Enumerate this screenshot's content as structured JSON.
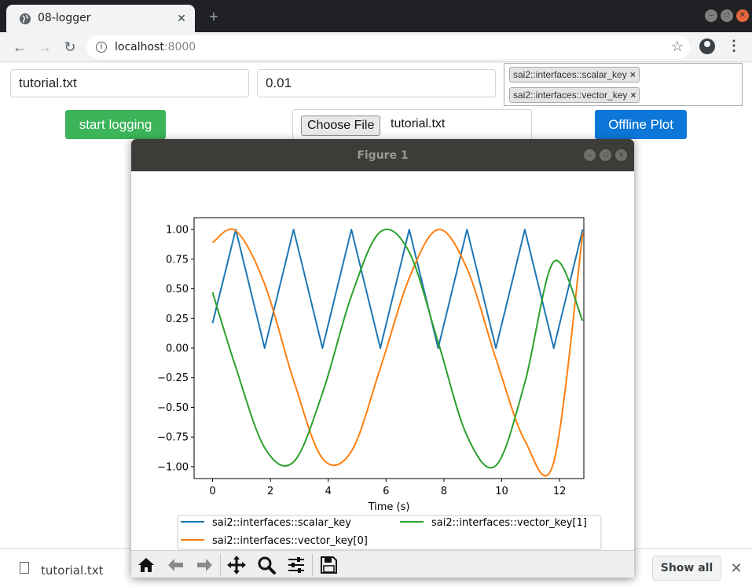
{
  "browser": {
    "tab_title": "08-logger",
    "url_host": "localhost",
    "url_port": ":8000"
  },
  "form": {
    "filename_value": "tutorial.txt",
    "interval_value": "0.01",
    "selected_keys": [
      "sai2::interfaces::scalar_key",
      "sai2::interfaces::vector_key"
    ],
    "start_logging_label": "start logging",
    "choose_file_label": "Choose File",
    "chosen_file": "tutorial.txt",
    "offline_plot_label": "Offline Plot"
  },
  "figure": {
    "window_title": "Figure 1"
  },
  "downloads": {
    "file": "tutorial.txt",
    "show_all_label": "Show all"
  },
  "icons": {
    "tab": "globe-icon",
    "file": "file-icon",
    "toolbar": [
      "home-icon",
      "back-icon",
      "forward-icon",
      "pan-icon",
      "zoom-icon",
      "configure-icon",
      "save-icon"
    ]
  },
  "colors": {
    "start_logging": "#3cb55a",
    "offline_plot": "#0d77d9",
    "series": [
      "#1f77b4",
      "#ff7f0e",
      "#2ca02c"
    ]
  },
  "chart_data": {
    "type": "line",
    "xlabel": "Time (s)",
    "ylabel": "",
    "xlim": [
      -0.64,
      12.84
    ],
    "ylim": [
      -1.1,
      1.1
    ],
    "xticks": [
      "0",
      "2",
      "4",
      "6",
      "8",
      "10",
      "12"
    ],
    "yticks": [
      "1.00",
      "0.75",
      "0.50",
      "0.25",
      "0.00",
      "−0.25",
      "−0.50",
      "−0.75",
      "−1.00"
    ],
    "legend_placement": "below-axes",
    "series": [
      {
        "name": "sai2::interfaces::scalar_key",
        "x": [
          0.0,
          0.8,
          1.8,
          2.8,
          3.8,
          4.8,
          5.8,
          6.8,
          7.8,
          8.8,
          9.8,
          10.8,
          11.8,
          12.8
        ],
        "y": [
          0.21,
          1.0,
          0.0,
          1.0,
          0.0,
          1.0,
          0.0,
          1.0,
          0.0,
          1.0,
          0.0,
          1.0,
          0.0,
          1.0
        ]
      },
      {
        "name": "sai2::interfaces::vector_key[0]",
        "x": [
          0.0,
          0.8,
          1.8,
          2.8,
          3.8,
          4.8,
          5.8,
          6.8,
          7.8,
          8.8,
          9.8,
          10.8,
          11.8,
          12.8
        ],
        "y": [
          0.89,
          0.99,
          0.54,
          -0.27,
          -0.93,
          -0.87,
          -0.17,
          0.59,
          1.0,
          0.67,
          -0.09,
          -0.78,
          -0.96,
          0.97
        ]
      },
      {
        "name": "sai2::interfaces::vector_key[1]",
        "x": [
          0.0,
          0.8,
          1.8,
          2.8,
          3.8,
          4.8,
          5.8,
          6.8,
          7.8,
          8.8,
          9.8,
          10.8,
          11.8,
          12.8
        ],
        "y": [
          0.47,
          -0.16,
          -0.84,
          -0.96,
          -0.38,
          0.44,
          0.98,
          0.81,
          0.05,
          -0.74,
          -0.99,
          -0.29,
          0.73,
          0.23
        ]
      }
    ]
  }
}
